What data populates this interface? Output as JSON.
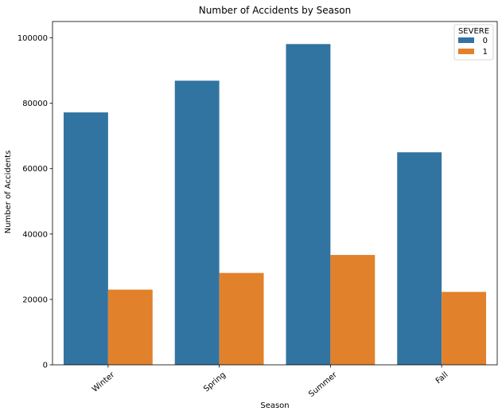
{
  "chart_data": {
    "type": "bar",
    "title": "Number of Accidents by Season",
    "xlabel": "Season",
    "ylabel": "Number of Accidents",
    "categories": [
      "Winter",
      "Spring",
      "Summer",
      "Fall"
    ],
    "series": [
      {
        "name": "0",
        "color": "#3274a1",
        "values": [
          77200,
          86900,
          98100,
          65000
        ]
      },
      {
        "name": "1",
        "color": "#e1812c",
        "values": [
          23000,
          28100,
          33600,
          22300
        ]
      }
    ],
    "ylim": [
      0,
      105000
    ],
    "yticks": [
      0,
      20000,
      40000,
      60000,
      80000,
      100000
    ],
    "ytick_labels": [
      "0",
      "20000",
      "40000",
      "60000",
      "80000",
      "100000"
    ],
    "legend": {
      "title": "SEVERE",
      "placement": "top-right"
    },
    "grid": false
  }
}
